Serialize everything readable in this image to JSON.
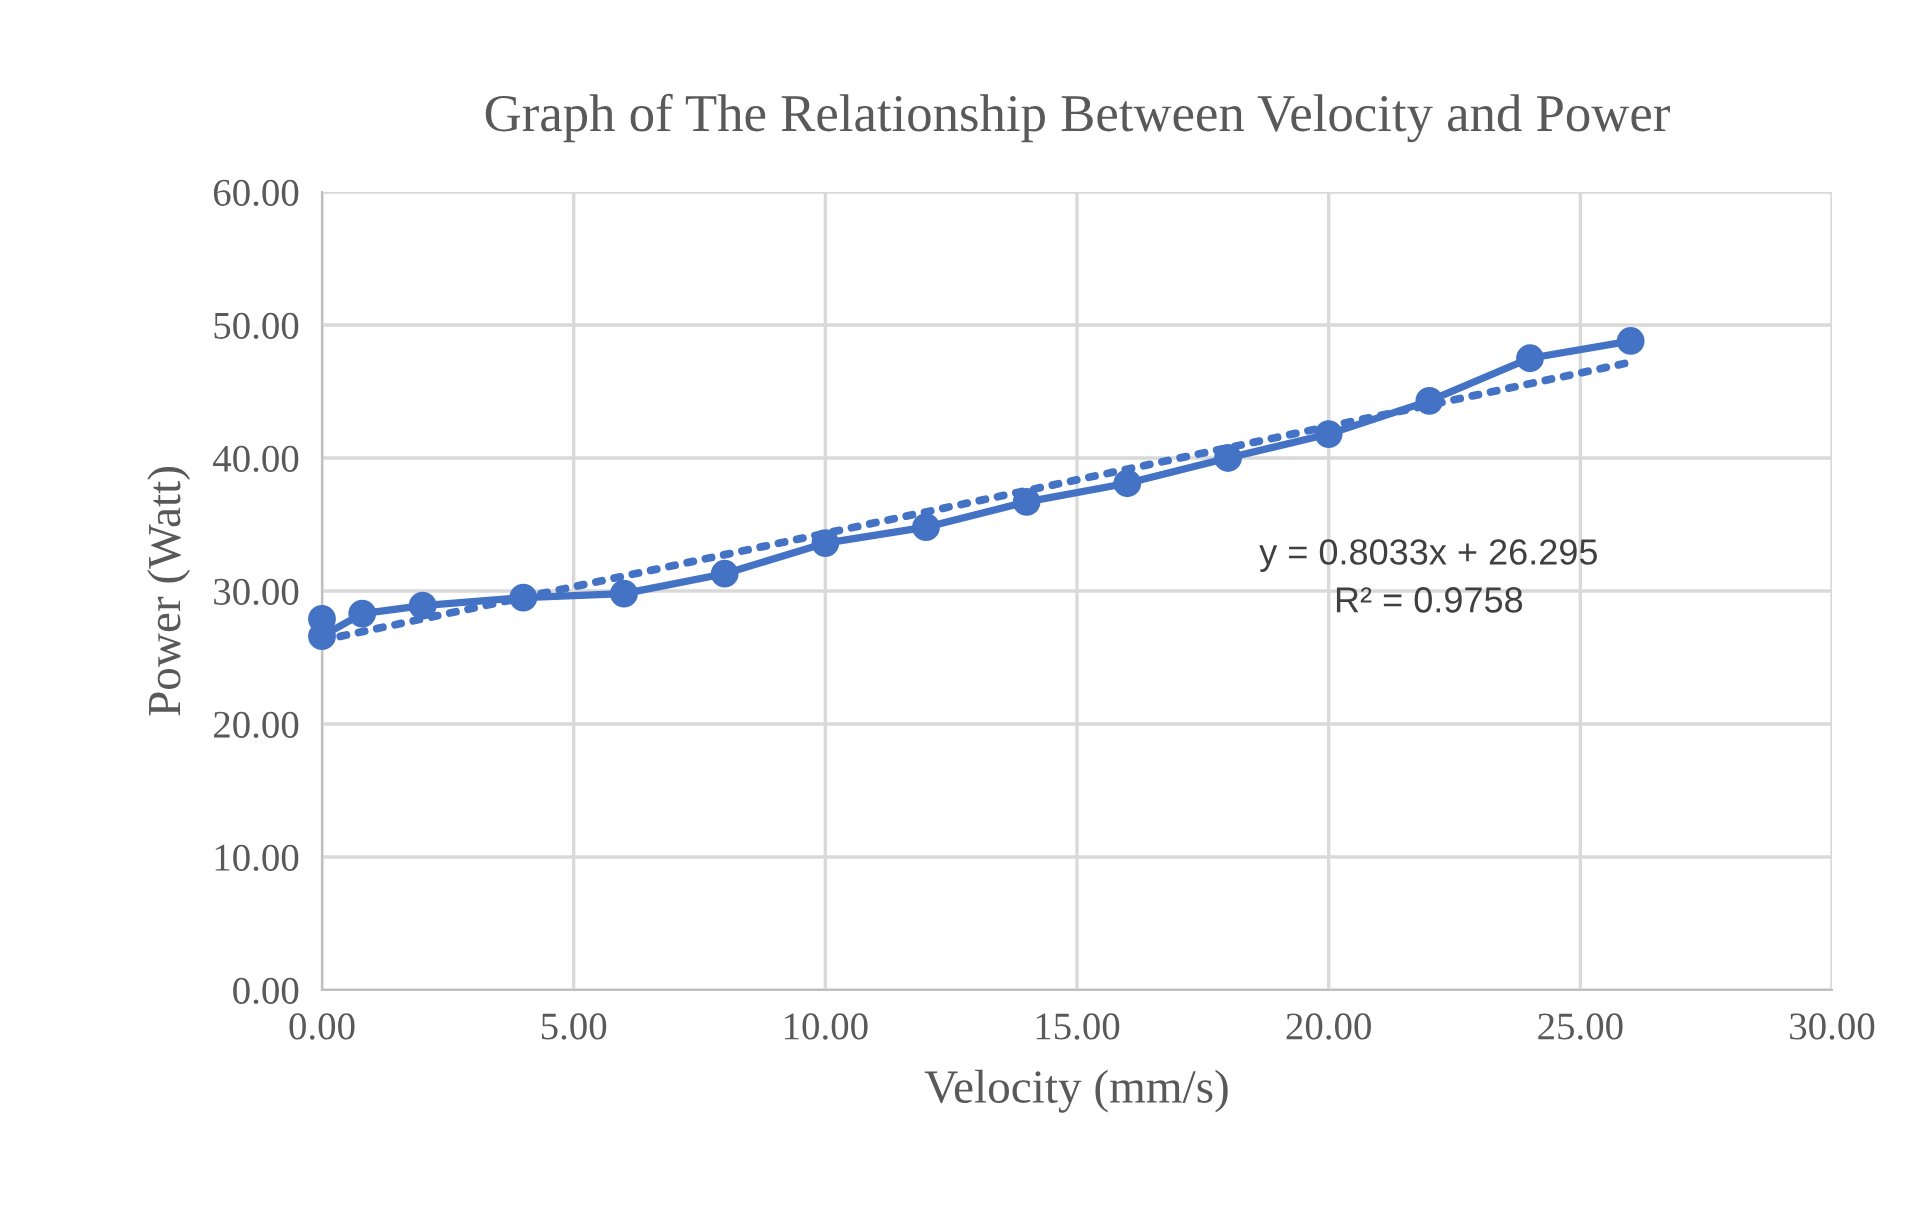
{
  "chart_data": {
    "type": "line",
    "title": "Graph of The Relationship Between Velocity and Power",
    "xlabel": "Velocity (mm/s)",
    "ylabel": "Power (Watt)",
    "series": [
      {
        "color": "#4472c4",
        "marker": "circle",
        "line_style": "solid",
        "x": [
          0,
          0,
          0.8,
          2,
          4,
          6,
          8,
          10,
          12,
          14,
          16,
          18,
          20,
          22,
          24,
          26
        ],
        "values": [
          27.9,
          26.6,
          28.3,
          28.9,
          29.5,
          29.8,
          31.3,
          33.6,
          34.8,
          36.7,
          38.1,
          40.0,
          41.8,
          44.3,
          47.5,
          48.8
        ]
      },
      {
        "color": "#4472c4",
        "marker": "none",
        "line_style": "dotted",
        "x": [
          0,
          26
        ],
        "values": [
          26.3,
          47.2
        ]
      }
    ],
    "annotations": [
      "y = 0.8033x + 26.295",
      "R² = 0.9758"
    ],
    "xlim": [
      0,
      30
    ],
    "ylim": [
      0,
      60
    ],
    "xticks": [
      {
        "value": 0,
        "label": "0.00"
      },
      {
        "value": 5,
        "label": "5.00"
      },
      {
        "value": 10,
        "label": "10.00"
      },
      {
        "value": 15,
        "label": "15.00"
      },
      {
        "value": 20,
        "label": "20.00"
      },
      {
        "value": 25,
        "label": "25.00"
      },
      {
        "value": 30,
        "label": "30.00"
      }
    ],
    "yticks": [
      {
        "value": 0,
        "label": "0.00"
      },
      {
        "value": 10,
        "label": "10.00"
      },
      {
        "value": 20,
        "label": "20.00"
      },
      {
        "value": 30,
        "label": "30.00"
      },
      {
        "value": 40,
        "label": "40.00"
      },
      {
        "value": 50,
        "label": "50.00"
      },
      {
        "value": 60,
        "label": "60.00"
      }
    ],
    "grid": true,
    "legend": false
  }
}
